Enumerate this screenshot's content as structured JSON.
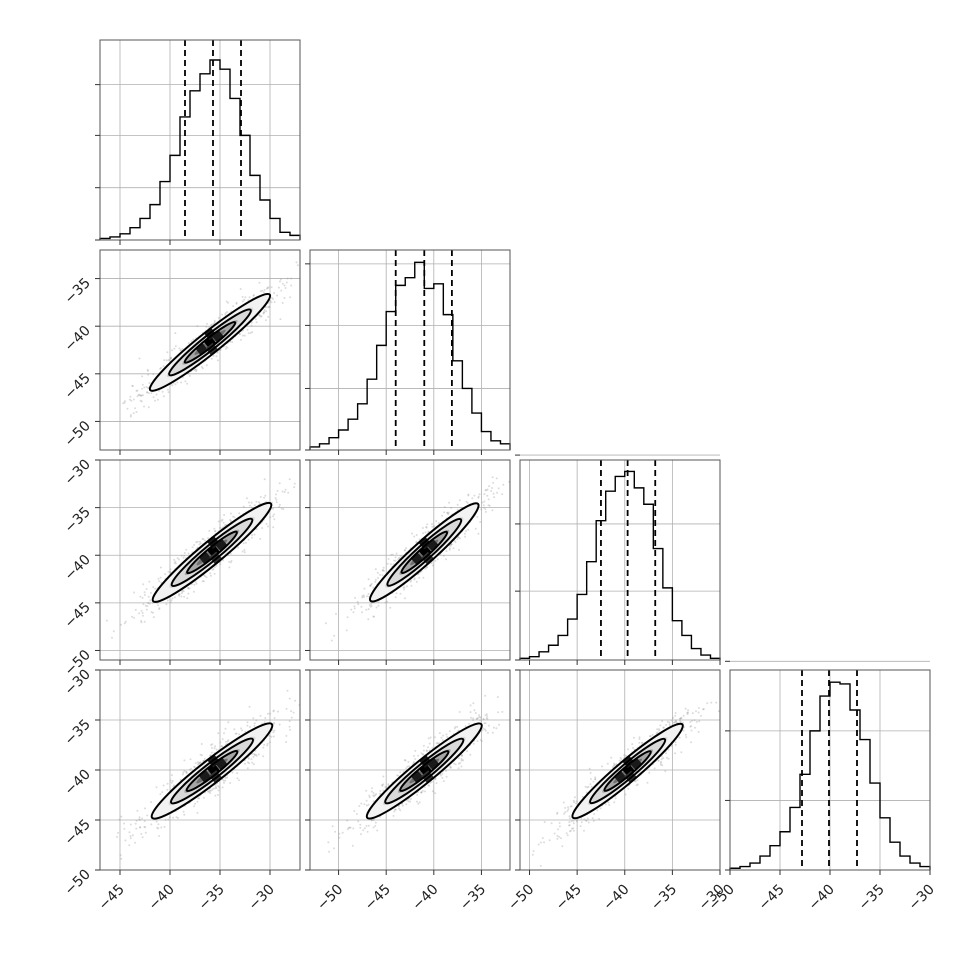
{
  "chart_data": {
    "type": "corner",
    "n_params": 4,
    "colors": {
      "hist": "#000000",
      "contour": "#000000",
      "quantile": "#000000",
      "grid": "#b0b0b0",
      "points": "#9a9a9a",
      "frame": "#555555"
    },
    "quantiles": [
      {
        "q16": -38.5,
        "q50": -35.7,
        "q84": -32.9
      },
      {
        "q16": -44.0,
        "q50": -41.0,
        "q84": -38.1
      },
      {
        "q16": -42.5,
        "q50": -39.7,
        "q84": -36.8
      },
      {
        "q16": -42.8,
        "q50": -40.1,
        "q84": -37.3
      }
    ],
    "ranges": [
      [
        -47,
        -27
      ],
      [
        -53,
        -32
      ],
      [
        -51,
        -30
      ],
      [
        -50,
        -30
      ]
    ],
    "x_ticks": [
      [
        -45,
        -40,
        -35,
        -30
      ],
      [
        -50,
        -45,
        -40,
        -35
      ],
      [
        -50,
        -45,
        -40,
        -35,
        -30
      ],
      [
        -50,
        -45,
        -40,
        -35,
        -30
      ]
    ],
    "x_tick_labels": [
      [
        "−45",
        "−40",
        "−35",
        "−30"
      ],
      [
        "−50",
        "−45",
        "−40",
        "−35"
      ],
      [
        "−50",
        "−45",
        "−40",
        "−35",
        "−30"
      ],
      [
        "−50",
        "−45",
        "−40",
        "−35",
        "−30"
      ]
    ],
    "y_ticks": [
      null,
      [
        -50,
        -45,
        -40,
        -35
      ],
      [
        -50,
        -45,
        -40,
        -35,
        -30
      ],
      [
        -50,
        -45,
        -40,
        -35,
        -30
      ]
    ],
    "y_tick_labels": [
      null,
      [
        "−50",
        "−45",
        "−40",
        "−35"
      ],
      [
        "−50",
        "−45",
        "−40",
        "−35",
        "−30"
      ],
      [
        "−50",
        "−45",
        "−40",
        "−35",
        "−30"
      ]
    ],
    "histograms": [
      {
        "param": 0,
        "bin_edges": [
          -47,
          -46,
          -45,
          -44,
          -43,
          -42,
          -41,
          -40,
          -39,
          -38,
          -37,
          -36,
          -35,
          -34,
          -33,
          -32,
          -31,
          -30,
          -29,
          -28,
          -27
        ],
        "counts": [
          1,
          2,
          4,
          8,
          14,
          23,
          38,
          55,
          80,
          97,
          108,
          117,
          111,
          92,
          68,
          42,
          26,
          14,
          5,
          3
        ],
        "ylim_max": 130,
        "grid_levels": [
          34,
          68,
          101
        ]
      },
      {
        "param": 1,
        "bin_edges": [
          -53,
          -52,
          -51,
          -50,
          -49,
          -48,
          -47,
          -46,
          -45,
          -44,
          -43,
          -42,
          -41,
          -40,
          -39,
          -38,
          -37,
          -36,
          -35,
          -34,
          -33,
          -32
        ],
        "counts": [
          2,
          4,
          8,
          13,
          20,
          30,
          46,
          68,
          90,
          107,
          112,
          122,
          105,
          108,
          88,
          58,
          40,
          24,
          12,
          6,
          4
        ],
        "ylim_max": 130,
        "grid_levels": [
          40,
          81,
          121
        ]
      },
      {
        "param": 2,
        "bin_edges": [
          -51,
          -50,
          -49,
          -48,
          -47,
          -46,
          -45,
          -44,
          -43,
          -42,
          -41,
          -40,
          -39,
          -38,
          -37,
          -36,
          -35,
          -34,
          -33,
          -32,
          -31,
          -30
        ],
        "counts": [
          1,
          2,
          5,
          9,
          15,
          25,
          40,
          60,
          85,
          103,
          112,
          115,
          105,
          95,
          68,
          44,
          24,
          15,
          7,
          3,
          1
        ],
        "ylim_max": 122,
        "grid_levels": [
          42,
          83,
          125
        ]
      },
      {
        "param": 3,
        "bin_edges": [
          -50,
          -49,
          -48,
          -47,
          -46,
          -45,
          -44,
          -43,
          -42,
          -41,
          -40,
          -39,
          -38,
          -37,
          -36,
          -35,
          -34,
          -33,
          -32,
          -31,
          -30
        ],
        "counts": [
          1,
          2,
          4,
          8,
          14,
          22,
          36,
          55,
          80,
          100,
          108,
          107,
          92,
          75,
          50,
          30,
          16,
          8,
          4,
          2
        ],
        "ylim_max": 115,
        "grid_levels": [
          40,
          80,
          120
        ]
      }
    ],
    "pairs": [
      {
        "x": 0,
        "y": 1,
        "mean_x": -36.0,
        "mean_y": -41.7,
        "major": 7.8,
        "minor": 0.95,
        "angle_deg": 40,
        "peak_offset": 0.0
      },
      {
        "x": 0,
        "y": 2,
        "mean_x": -35.8,
        "mean_y": -39.7,
        "major": 7.8,
        "minor": 1.0,
        "angle_deg": 41,
        "peak_offset": 0.5
      },
      {
        "x": 1,
        "y": 2,
        "mean_x": -41.0,
        "mean_y": -39.7,
        "major": 7.6,
        "minor": 1.0,
        "angle_deg": 42,
        "peak_offset": 0.3
      },
      {
        "x": 0,
        "y": 3,
        "mean_x": -35.8,
        "mean_y": -40.1,
        "major": 7.6,
        "minor": 1.0,
        "angle_deg": 38,
        "peak_offset": 0.5
      },
      {
        "x": 1,
        "y": 3,
        "mean_x": -41.0,
        "mean_y": -40.1,
        "major": 7.6,
        "minor": 1.0,
        "angle_deg": 38,
        "peak_offset": 0.4
      },
      {
        "x": 2,
        "y": 3,
        "mean_x": -39.7,
        "mean_y": -40.1,
        "major": 7.4,
        "minor": 0.95,
        "angle_deg": 39,
        "peak_offset": 0.3
      }
    ]
  }
}
